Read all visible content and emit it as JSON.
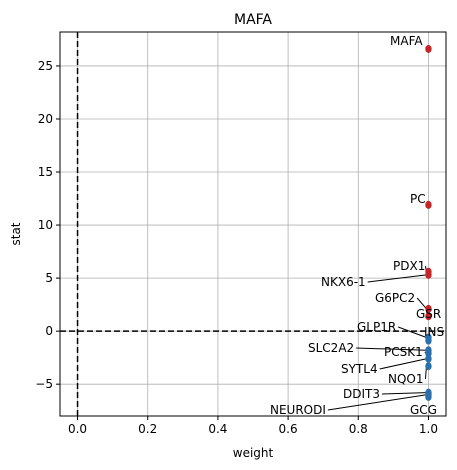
{
  "chart_data": {
    "type": "scatter",
    "title": "MAFA",
    "xlabel": "weight",
    "ylabel": "stat",
    "xlim": [
      -0.05,
      1.05
    ],
    "ylim": [
      -8,
      28.2
    ],
    "xticks": [
      "0.0",
      "0.2",
      "0.4",
      "0.6",
      "0.8",
      "1.0"
    ],
    "xtick_values": [
      0,
      0.2,
      0.4,
      0.6,
      0.8,
      1.0
    ],
    "yticks": [
      "−5",
      "0",
      "5",
      "10",
      "15",
      "20",
      "25"
    ],
    "ytick_values": [
      -5,
      0,
      5,
      10,
      15,
      20,
      25
    ],
    "grid": true,
    "reference_lines": {
      "x": 0,
      "y": 0,
      "style": "dashed"
    },
    "colors": {
      "positive": "#c5262a",
      "negative": "#2a6fad",
      "grid": "#b0b0b0"
    },
    "points": [
      {
        "label": "MAFA",
        "x": 1.0,
        "y": 26.6,
        "sign": "positive"
      },
      {
        "label": "PC",
        "x": 1.0,
        "y": 11.9,
        "sign": "positive"
      },
      {
        "label": "PDX1",
        "x": 1.0,
        "y": 5.6,
        "sign": "positive"
      },
      {
        "label": "NKX6-1",
        "x": 1.0,
        "y": 5.3,
        "sign": "positive"
      },
      {
        "label": "G6PC2",
        "x": 1.0,
        "y": 2.1,
        "sign": "positive"
      },
      {
        "label": "GSR",
        "x": 1.0,
        "y": 1.4,
        "sign": "positive"
      },
      {
        "label": "GLP1R",
        "x": 1.0,
        "y": -0.6,
        "sign": "negative"
      },
      {
        "label": "INS",
        "x": 1.0,
        "y": -0.9,
        "sign": "negative"
      },
      {
        "label": "SLC2A2",
        "x": 1.0,
        "y": -1.8,
        "sign": "negative"
      },
      {
        "label": "PCSK1",
        "x": 1.0,
        "y": -2.1,
        "sign": "negative"
      },
      {
        "label": "SYTL4",
        "x": 1.0,
        "y": -2.6,
        "sign": "negative"
      },
      {
        "label": "NQO1",
        "x": 1.0,
        "y": -3.3,
        "sign": "negative"
      },
      {
        "label": "DDIT3",
        "x": 1.0,
        "y": -5.8,
        "sign": "negative"
      },
      {
        "label": "NEURODI",
        "x": 1.0,
        "y": -6.0,
        "sign": "negative"
      },
      {
        "label": "GCG",
        "x": 1.0,
        "y": -6.2,
        "sign": "negative"
      }
    ]
  }
}
